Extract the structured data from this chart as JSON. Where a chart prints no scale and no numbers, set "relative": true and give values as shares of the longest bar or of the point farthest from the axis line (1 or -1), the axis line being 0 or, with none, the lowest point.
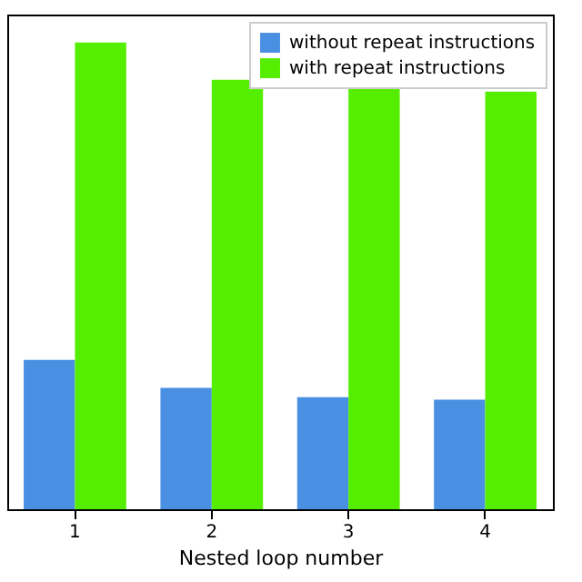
{
  "chart_data": {
    "type": "bar",
    "relative": true,
    "xlabel": "Nested loop number",
    "categories": [
      "1",
      "2",
      "3",
      "4"
    ],
    "legend": "top right",
    "series": [
      {
        "name": "without repeat instructions",
        "color": "#4a90e2",
        "values": [
          0.32,
          0.26,
          0.24,
          0.235
        ]
      },
      {
        "name": "with repeat instructions",
        "color": "#55ee00",
        "values": [
          1,
          0.92,
          0.9,
          0.895
        ]
      }
    ]
  }
}
